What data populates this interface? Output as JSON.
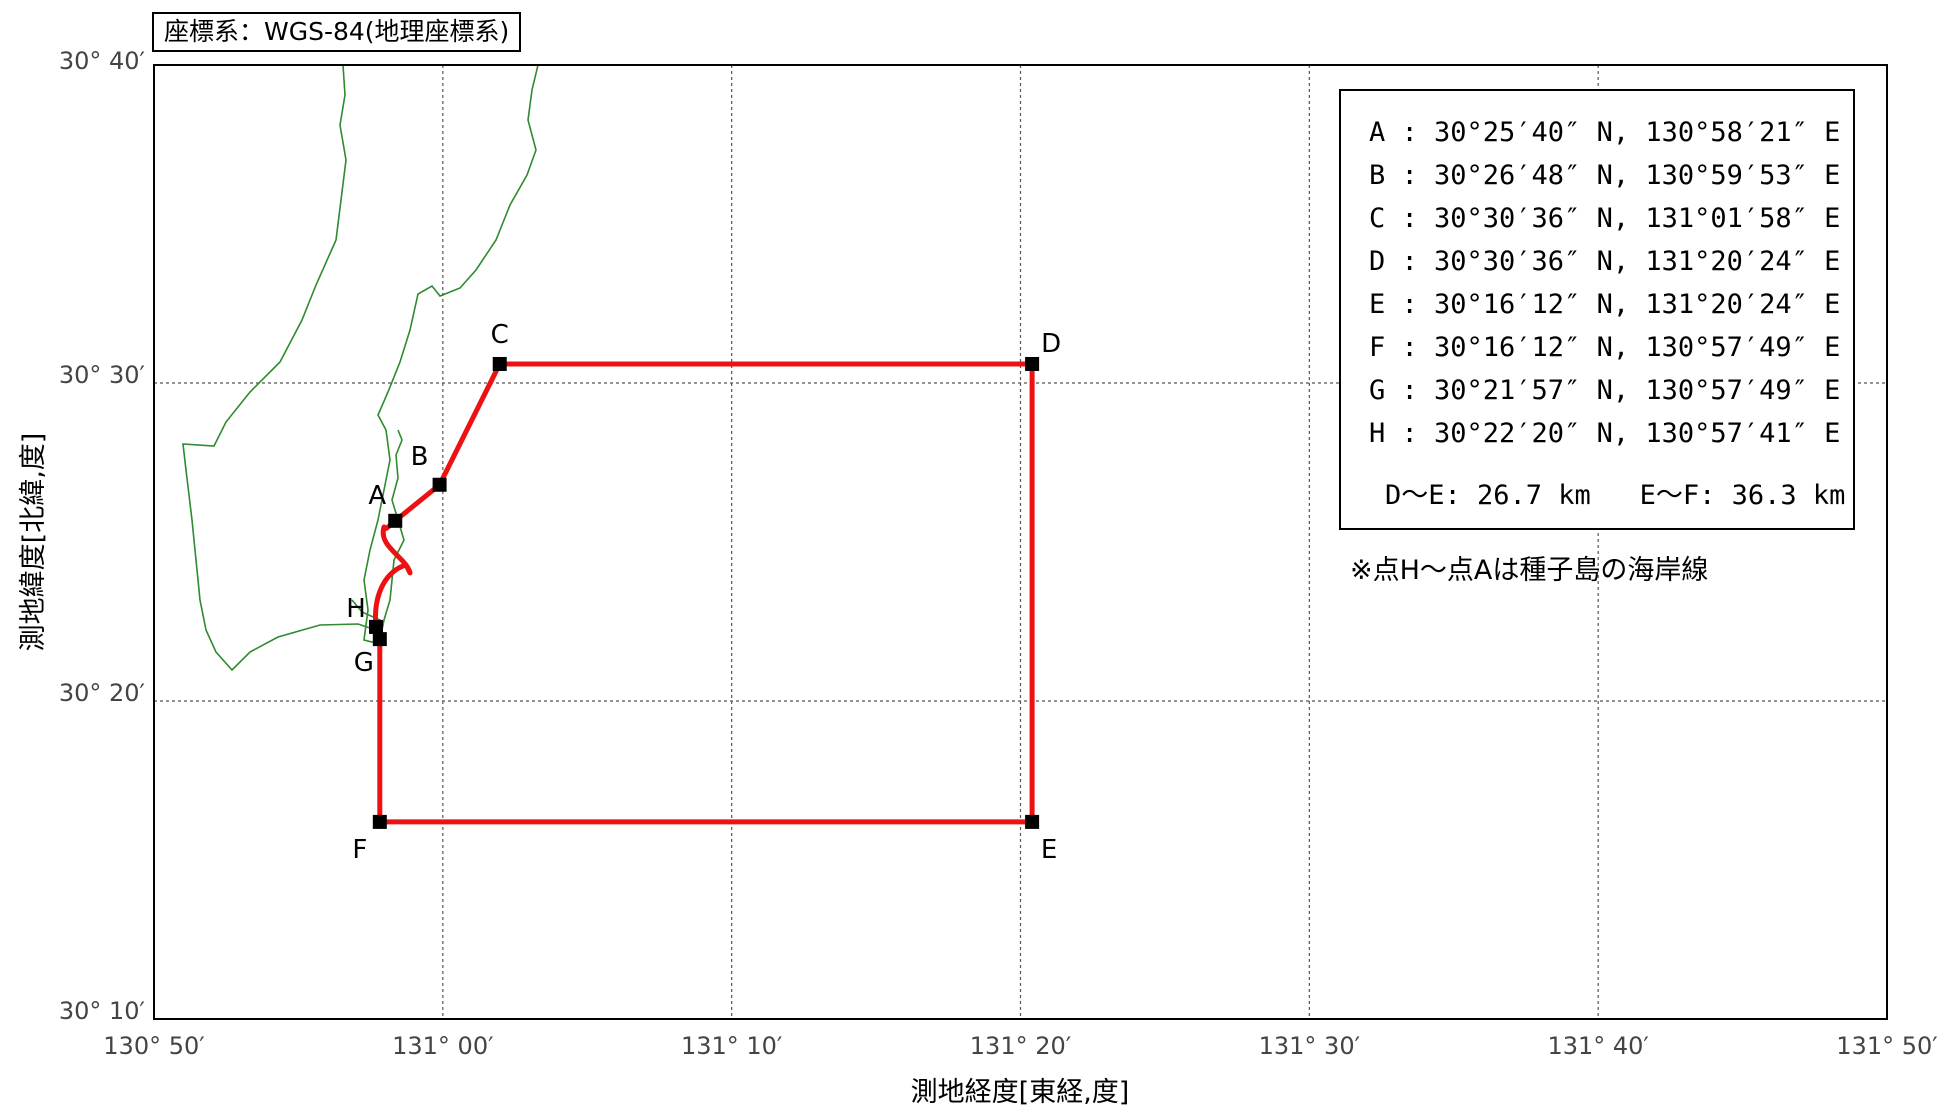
{
  "title": "座標系：WGS-84(地理座標系)",
  "axes": {
    "xlabel": "測地経度[東経,度]",
    "ylabel": "測地緯度[北緯,度]",
    "x_ticks": [
      "130° 50′",
      "131° 00′",
      "131° 10′",
      "131° 20′",
      "131° 30′",
      "131° 40′",
      "131° 50′"
    ],
    "y_ticks": [
      "30° 40′",
      "30° 30′",
      "30° 20′",
      "30° 10′"
    ],
    "x_range_deg": [
      130.8333,
      131.8333
    ],
    "y_range_deg": [
      30.1667,
      30.6667
    ],
    "grid": "dotted"
  },
  "points": [
    {
      "label": "A",
      "lat": "30°25′40″ N",
      "lon": "130°58′21″ E",
      "lat_deg": 30.4278,
      "lon_deg": 130.9725
    },
    {
      "label": "B",
      "lat": "30°26′48″ N",
      "lon": "130°59′53″ E",
      "lat_deg": 30.4467,
      "lon_deg": 130.9981
    },
    {
      "label": "C",
      "lat": "30°30′36″ N",
      "lon": "131°01′58″ E",
      "lat_deg": 30.51,
      "lon_deg": 131.0328
    },
    {
      "label": "D",
      "lat": "30°30′36″ N",
      "lon": "131°20′24″ E",
      "lat_deg": 30.51,
      "lon_deg": 131.34
    },
    {
      "label": "E",
      "lat": "30°16′12″ N",
      "lon": "131°20′24″ E",
      "lat_deg": 30.27,
      "lon_deg": 131.34
    },
    {
      "label": "F",
      "lat": "30°16′12″ N",
      "lon": "130°57′49″ E",
      "lat_deg": 30.27,
      "lon_deg": 130.9636
    },
    {
      "label": "G",
      "lat": "30°21′57″ N",
      "lon": "130°57′49″ E",
      "lat_deg": 30.3658,
      "lon_deg": 130.9636
    },
    {
      "label": "H",
      "lat": "30°22′20″ N",
      "lon": "130°57′41″ E",
      "lat_deg": 30.3722,
      "lon_deg": 130.9614
    }
  ],
  "legend": {
    "rows": [
      "A : 30°25′40″ N, 130°58′21″ E",
      "B : 30°26′48″ N, 130°59′53″ E",
      "C : 30°30′36″ N, 131°01′58″ E",
      "D : 30°30′36″ N, 131°20′24″ E",
      "E : 30°16′12″ N, 131°20′24″ E",
      "F : 30°16′12″ N, 130°57′49″ E",
      "G : 30°21′57″ N, 130°57′49″ E",
      "H : 30°22′20″ N, 130°57′41″ E"
    ],
    "distances": "D～E: 26.7 km   E～F: 36.3 km"
  },
  "note": "※点H～点Aは種子島の海岸線",
  "colors": {
    "boundary": "#ee1111",
    "coastline": "#2e8b2e",
    "marker": "#000000",
    "grid": "#555555"
  }
}
